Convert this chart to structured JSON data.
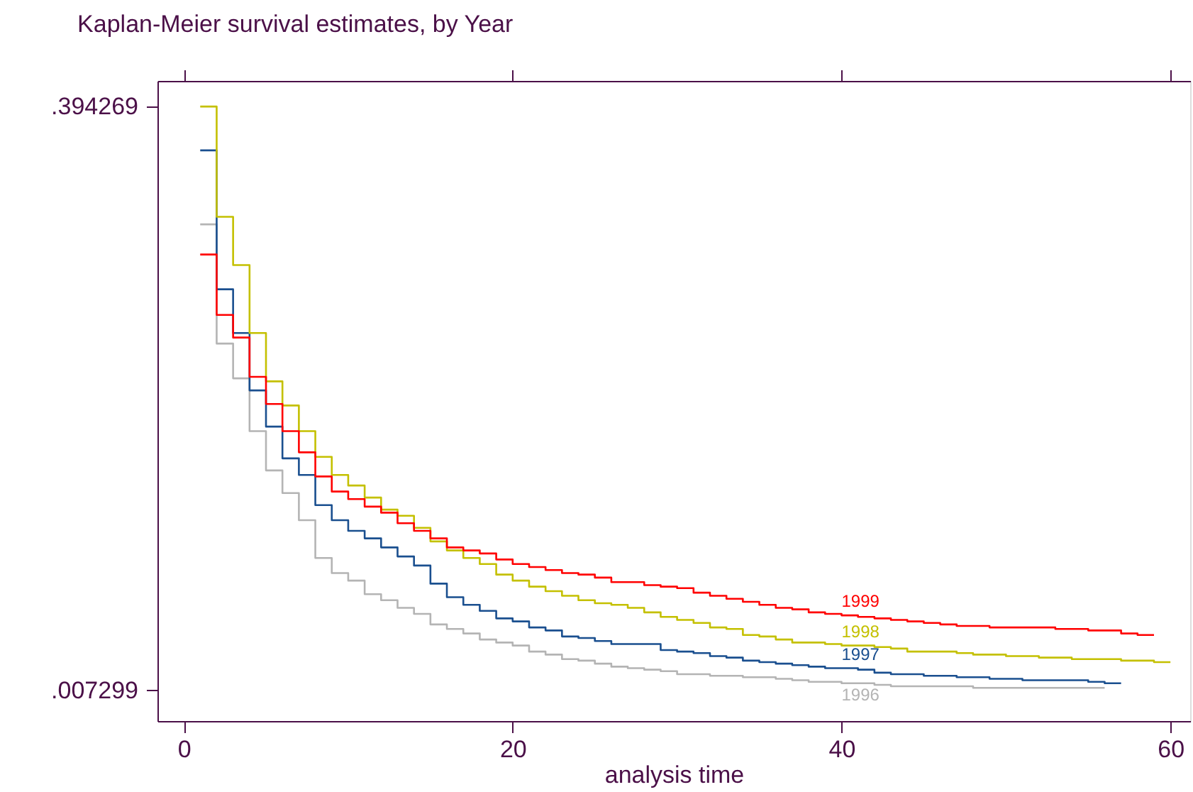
{
  "chart_data": {
    "type": "step",
    "title": "Kaplan-Meier survival estimates, by Year",
    "xlabel": "analysis time",
    "x": [
      1,
      2,
      3,
      4,
      5,
      6,
      7,
      8,
      9,
      10,
      11,
      12,
      13,
      14,
      15,
      16,
      17,
      18,
      19,
      20,
      21,
      22,
      23,
      24,
      25,
      26,
      27,
      28,
      29,
      30,
      31,
      32,
      33,
      34,
      35,
      36,
      37,
      38,
      39,
      40,
      41,
      42,
      43,
      44,
      45,
      46,
      47,
      48,
      49,
      50,
      51,
      52,
      53,
      54,
      55,
      56,
      57,
      58,
      59,
      60
    ],
    "series": [
      {
        "name": "1996",
        "color": "#b4b4b4",
        "values": [
          0.316,
          0.237,
          0.214,
          0.179,
          0.153,
          0.138,
          0.12,
          0.095,
          0.085,
          0.08,
          0.071,
          0.067,
          0.062,
          0.058,
          0.051,
          0.048,
          0.045,
          0.041,
          0.039,
          0.037,
          0.033,
          0.031,
          0.028,
          0.027,
          0.025,
          0.023,
          0.022,
          0.021,
          0.02,
          0.018,
          0.018,
          0.017,
          0.017,
          0.016,
          0.016,
          0.015,
          0.014,
          0.013,
          0.013,
          0.012,
          0.012,
          0.011,
          0.01,
          0.01,
          0.01,
          0.01,
          0.01,
          0.009,
          0.009,
          0.009,
          0.009,
          0.009,
          0.009,
          0.009,
          0.009,
          0.009,
          null,
          null,
          null,
          null
        ]
      },
      {
        "name": "1997",
        "color": "#1a4f8f",
        "values": [
          0.365,
          0.273,
          0.244,
          0.206,
          0.182,
          0.161,
          0.15,
          0.13,
          0.12,
          0.113,
          0.108,
          0.102,
          0.096,
          0.09,
          0.078,
          0.069,
          0.064,
          0.06,
          0.055,
          0.053,
          0.049,
          0.047,
          0.043,
          0.042,
          0.04,
          0.038,
          0.038,
          0.038,
          0.034,
          0.033,
          0.032,
          0.03,
          0.029,
          0.027,
          0.026,
          0.025,
          0.024,
          0.023,
          0.022,
          0.022,
          0.021,
          0.019,
          0.018,
          0.018,
          0.017,
          0.017,
          0.016,
          0.016,
          0.015,
          0.015,
          0.014,
          0.014,
          0.014,
          0.014,
          0.013,
          0.012,
          0.012,
          null,
          null,
          null
        ]
      },
      {
        "name": "1998",
        "color": "#c4c000",
        "values": [
          0.394,
          0.321,
          0.289,
          0.244,
          0.212,
          0.196,
          0.179,
          0.162,
          0.15,
          0.143,
          0.135,
          0.127,
          0.123,
          0.115,
          0.106,
          0.1,
          0.095,
          0.091,
          0.084,
          0.08,
          0.076,
          0.073,
          0.07,
          0.067,
          0.065,
          0.064,
          0.062,
          0.059,
          0.056,
          0.054,
          0.052,
          0.049,
          0.048,
          0.044,
          0.043,
          0.041,
          0.039,
          0.039,
          0.038,
          0.037,
          0.037,
          0.036,
          0.035,
          0.033,
          0.033,
          0.033,
          0.032,
          0.031,
          0.031,
          0.03,
          0.03,
          0.029,
          0.029,
          0.028,
          0.028,
          0.028,
          0.027,
          0.027,
          0.026,
          0.026
        ]
      },
      {
        "name": "1999",
        "color": "#ff0000",
        "values": [
          0.296,
          0.256,
          0.241,
          0.215,
          0.197,
          0.179,
          0.165,
          0.149,
          0.139,
          0.134,
          0.129,
          0.125,
          0.118,
          0.113,
          0.108,
          0.102,
          0.1,
          0.098,
          0.094,
          0.091,
          0.089,
          0.087,
          0.085,
          0.084,
          0.082,
          0.079,
          0.079,
          0.077,
          0.076,
          0.075,
          0.072,
          0.07,
          0.068,
          0.066,
          0.064,
          0.062,
          0.061,
          0.059,
          0.058,
          0.057,
          0.056,
          0.055,
          0.054,
          0.053,
          0.052,
          0.051,
          0.05,
          0.05,
          0.049,
          0.049,
          0.049,
          0.049,
          0.048,
          0.048,
          0.047,
          0.047,
          0.045,
          0.044,
          0.044,
          null
        ]
      }
    ],
    "xlim": [
      -1.6,
      61.2
    ],
    "xticks": [
      0,
      20,
      40,
      60
    ],
    "ylim": [
      -0.013,
      0.411
    ],
    "yticks": [
      {
        "value": 0.394269,
        "label": ".394269"
      },
      {
        "value": 0.007299,
        "label": ".007299"
      }
    ],
    "grid": false,
    "legend": false,
    "marker": "none",
    "line_style": "solid"
  }
}
